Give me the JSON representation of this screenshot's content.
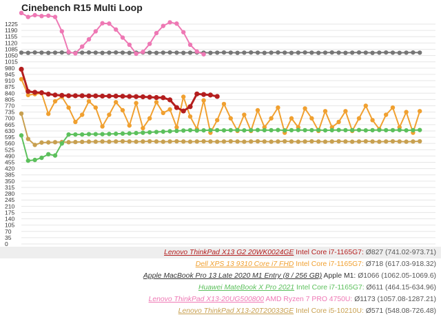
{
  "chart_data": {
    "type": "line",
    "title": "Cinebench R15 Multi Loop",
    "xlabel": "",
    "ylabel": "",
    "ylim": [
      0,
      1275
    ],
    "y_ticks": [
      0,
      35,
      70,
      105,
      140,
      175,
      210,
      245,
      280,
      315,
      350,
      385,
      420,
      455,
      490,
      525,
      560,
      595,
      630,
      665,
      700,
      735,
      770,
      805,
      840,
      875,
      910,
      945,
      980,
      1015,
      1050,
      1085,
      1120,
      1155,
      1190,
      1225
    ],
    "y_tick_labels": [
      "0",
      "35",
      "70",
      "105",
      "140",
      "175",
      "210",
      "245",
      "280",
      "315",
      "350",
      "385",
      "420",
      "455",
      "490",
      "525",
      "560",
      "595",
      "630",
      "665",
      "700",
      "735",
      "770",
      "805",
      "840",
      "875",
      "910",
      "945",
      "980",
      "1015",
      "1050",
      "1085",
      "1120",
      "1155",
      "1190",
      "1225"
    ],
    "x_start": 1,
    "grid": true,
    "legend_position": "bottom-right",
    "series": [
      {
        "name": "Lenovo ThinkPad X13 G2 20WK0024GE",
        "cpu": "Intel Core i7-1165G7",
        "summary": "Ø827 (741.02-973.71)",
        "color": "#b41e1e",
        "values": [
          973.7,
          850,
          845,
          843,
          835,
          830,
          828,
          826,
          826,
          826,
          825,
          825,
          824,
          824,
          824,
          823,
          822,
          821,
          820,
          818,
          816,
          815,
          803,
          760,
          741,
          765,
          836,
          833,
          830,
          822
        ]
      },
      {
        "name": "Dell XPS 13 9310 Core i7 FHD",
        "cpu": "Intel Core i7-1165G7",
        "summary": "Ø718 (617.03-918.32)",
        "color": "#f0a030",
        "values": [
          918.3,
          830,
          835,
          840,
          725,
          795,
          820,
          760,
          680,
          720,
          795,
          760,
          655,
          720,
          790,
          745,
          660,
          785,
          645,
          700,
          790,
          730,
          750,
          650,
          820,
          710,
          640,
          800,
          620,
          690,
          780,
          700,
          630,
          720,
          630,
          745,
          650,
          700,
          760,
          620,
          700,
          650,
          755,
          700,
          630,
          740,
          650,
          680,
          740,
          630,
          700,
          770,
          690,
          640,
          720,
          760,
          650,
          735,
          620,
          740
        ]
      },
      {
        "name": "Apple MacBook Pro 13 Late 2020 M1 Entry (8 / 256 GB)",
        "cpu": "Apple M1",
        "summary": "Ø1066 (1062.05-1069.6)",
        "color": "#777777",
        "values": [
          1066,
          1065,
          1067,
          1066,
          1065,
          1066,
          1067,
          1066,
          1065,
          1066,
          1067,
          1066,
          1065,
          1066,
          1067,
          1066,
          1065,
          1066,
          1067,
          1066,
          1065,
          1066,
          1067,
          1066,
          1065,
          1066,
          1067,
          1066,
          1065,
          1066,
          1067,
          1066,
          1065,
          1066,
          1067,
          1066,
          1065,
          1066,
          1067,
          1066,
          1065,
          1066,
          1067,
          1066,
          1065,
          1066,
          1067,
          1066,
          1065,
          1066,
          1067,
          1066,
          1065,
          1066,
          1067,
          1066,
          1065,
          1066,
          1067,
          1066
        ]
      },
      {
        "name": "Huawei MateBook X Pro 2021",
        "cpu": "Intel Core i7-1165G7",
        "summary": "Ø611 (464.15-634.96)",
        "color": "#5cc05c",
        "values": [
          605,
          464.2,
          468,
          480,
          500,
          493,
          560,
          610,
          610,
          610,
          612,
          612,
          612,
          613,
          614,
          615,
          616,
          618,
          620,
          622,
          624,
          626,
          628,
          630,
          632,
          634,
          632,
          633,
          634,
          634,
          633,
          634,
          635,
          633,
          634,
          635,
          634,
          634,
          635,
          633,
          634,
          635,
          634,
          634,
          635,
          633,
          634,
          635,
          634,
          634,
          635,
          633,
          634,
          635,
          634,
          634,
          635,
          633,
          634,
          635
        ]
      },
      {
        "name": "Lenovo ThinkPad X13-20UG500800",
        "cpu": "AMD Ryzen 7 PRO 4750U",
        "summary": "Ø1173 (1057.08-1287.21)",
        "color": "#ee78b4",
        "values": [
          1287.2,
          1265,
          1275,
          1270,
          1272,
          1265,
          1185,
          1070,
          1062,
          1100,
          1140,
          1185,
          1230,
          1228,
          1195,
          1150,
          1110,
          1060,
          1070,
          1115,
          1175,
          1215,
          1235,
          1228,
          1180,
          1110,
          1072,
          1057.1
        ]
      },
      {
        "name": "Lenovo ThinkPad X13-20T20033GE",
        "cpu": "Intel Core i5-10210U",
        "summary": "Ø571 (548.08-726.48)",
        "color": "#c8a050",
        "values": [
          726.5,
          585,
          552,
          565,
          566,
          567,
          568,
          567,
          568,
          569,
          570,
          570,
          571,
          570,
          571,
          572,
          571,
          570,
          571,
          572,
          571,
          570,
          571,
          572,
          571,
          570,
          571,
          572,
          571,
          570,
          571,
          572,
          571,
          570,
          571,
          572,
          571,
          570,
          571,
          572,
          571,
          570,
          571,
          572,
          571,
          570,
          571,
          572,
          571,
          570,
          571,
          572,
          571,
          570,
          571,
          572,
          571,
          570,
          571,
          572
        ]
      }
    ]
  },
  "legend_meta": [
    {
      "separator": " ",
      "cpu_suffix": ": "
    },
    {
      "separator": " ",
      "cpu_suffix": ": "
    },
    {
      "separator": " ",
      "cpu_suffix": ": "
    },
    {
      "separator": " ",
      "cpu_suffix": ": "
    },
    {
      "separator": " ",
      "cpu_suffix": ": "
    },
    {
      "separator": " ",
      "cpu_suffix": ": "
    }
  ]
}
